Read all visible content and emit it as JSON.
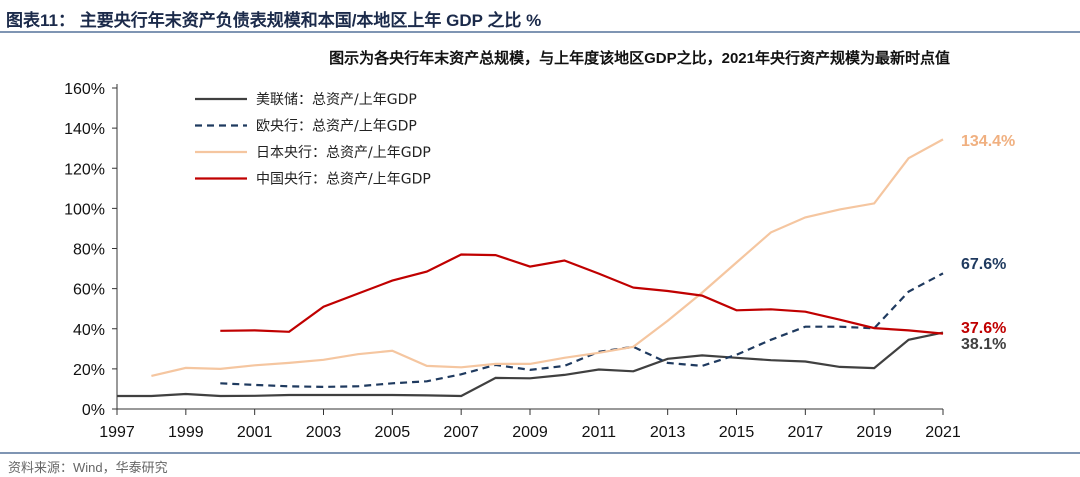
{
  "header": {
    "title": "图表11： 主要央行年末资产负债表规模和本国/本地区上年 GDP 之比 %"
  },
  "footer": {
    "source": "资料来源：Wind，华泰研究"
  },
  "chart_data": {
    "type": "line",
    "title": "图示为各央行年末资产总规模，与上年度该地区GDP之比，2021年央行资产规模为最新时点值",
    "x": [
      1997,
      1998,
      1999,
      2000,
      2001,
      2002,
      2003,
      2004,
      2005,
      2006,
      2007,
      2008,
      2009,
      2010,
      2011,
      2012,
      2013,
      2014,
      2015,
      2016,
      2017,
      2018,
      2019,
      2020,
      2021
    ],
    "xticks": [
      "1997",
      "1999",
      "2001",
      "2003",
      "2005",
      "2007",
      "2009",
      "2011",
      "2013",
      "2015",
      "2017",
      "2019",
      "2021"
    ],
    "yticks": [
      "0%",
      "20%",
      "40%",
      "60%",
      "80%",
      "100%",
      "120%",
      "140%",
      "160%"
    ],
    "ylim": [
      0,
      160
    ],
    "legend_position": "top-left",
    "series": [
      {
        "name": "美联储：总资产/上年GDP",
        "color": "#404040",
        "dash": false,
        "end_label": "38.1%",
        "values": [
          6.5,
          6.5,
          7.5,
          6.5,
          6.6,
          7,
          7,
          7,
          7,
          6.8,
          6.5,
          15.5,
          15.3,
          17,
          19.7,
          18.8,
          25,
          26.7,
          25.5,
          24.3,
          23.7,
          21,
          20.4,
          34.5,
          38.1
        ]
      },
      {
        "name": "欧央行：总资产/上年GDP",
        "color": "#1f3a5f",
        "dash": true,
        "end_label": "67.6%",
        "values": [
          null,
          null,
          null,
          12.8,
          12,
          11.3,
          11,
          11.3,
          12.8,
          13.8,
          17.3,
          22,
          19.5,
          21.5,
          28.5,
          31,
          23,
          21.5,
          27,
          34.5,
          41,
          41,
          40.2,
          58.5,
          67.6
        ]
      },
      {
        "name": "日本央行：总资产/上年GDP",
        "color": "#f5c6a0",
        "dash": false,
        "end_label": "134.4%",
        "values": [
          null,
          16.5,
          20.5,
          20,
          21.8,
          23,
          24.5,
          27.3,
          29,
          21.5,
          20.8,
          22.5,
          22.5,
          25.5,
          28,
          31,
          44,
          58,
          73,
          88,
          95.5,
          99.5,
          102.5,
          125,
          134.4
        ]
      },
      {
        "name": "中国央行：总资产/上年GDP",
        "color": "#c00000",
        "dash": false,
        "end_label": "37.6%",
        "values": [
          null,
          null,
          null,
          39,
          39.2,
          38.5,
          51,
          57.5,
          64,
          68.5,
          77,
          76.7,
          71,
          74,
          67.5,
          60.5,
          58.8,
          56.5,
          49.2,
          49.7,
          48.5,
          44.5,
          40.3,
          39.2,
          37.6
        ]
      }
    ]
  }
}
